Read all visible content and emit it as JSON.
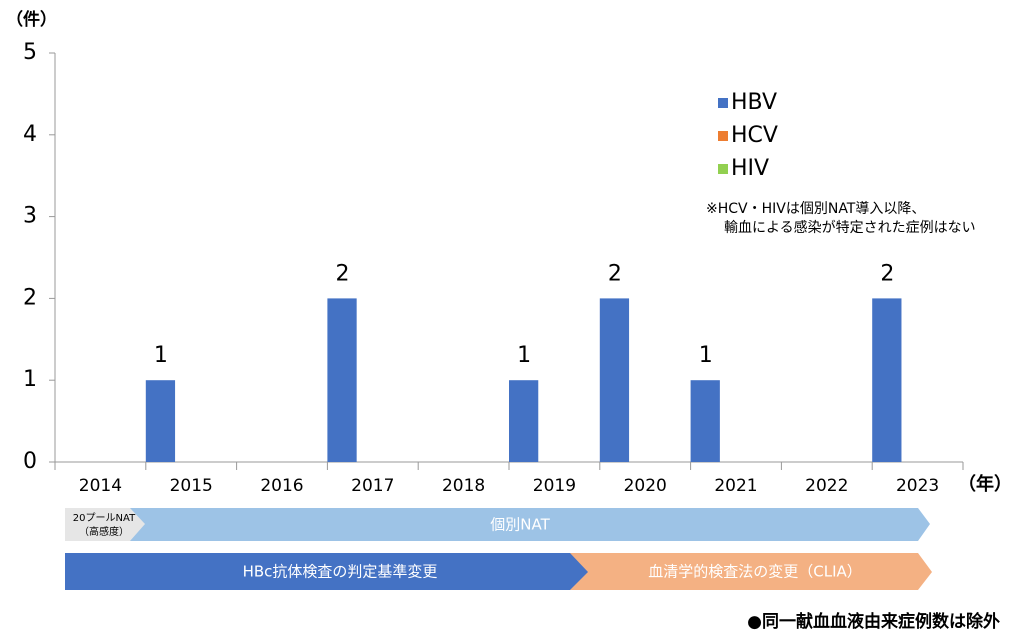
{
  "chart_data": {
    "type": "bar",
    "y_unit": "（件）",
    "x_unit": "（年）",
    "categories": [
      "2014",
      "2015",
      "2016",
      "2017",
      "2018",
      "2019",
      "2020",
      "2021",
      "2022",
      "2023"
    ],
    "series": [
      {
        "name": "HBV",
        "color": "#4472c4",
        "values": [
          0,
          1,
          0,
          2,
          0,
          1,
          2,
          1,
          0,
          2
        ]
      },
      {
        "name": "HCV",
        "color": "#ed7d31",
        "values": [
          0,
          0,
          0,
          0,
          0,
          0,
          0,
          0,
          0,
          0
        ]
      },
      {
        "name": "HIV",
        "color": "#92d050",
        "values": [
          0,
          0,
          0,
          0,
          0,
          0,
          0,
          0,
          0,
          0
        ]
      }
    ],
    "ylim": [
      0,
      5
    ],
    "yticks": [
      0,
      1,
      2,
      3,
      4,
      5
    ],
    "grid": false,
    "legend": "upper right",
    "legend_note": [
      "※HCV・HIVは個別NAT導入以降、",
      "輸血による感染が特定された症例はない"
    ],
    "timeline": {
      "pool_nat": [
        "20プールNAT",
        "（高感度）"
      ],
      "individual_nat": "個別NAT",
      "hbc_criteria": "HBc抗体検査の判定基準変更",
      "clia": "血清学的検査法の変更（CLIA）"
    },
    "footnote": "●同一献血血液由来症例数は除外"
  }
}
